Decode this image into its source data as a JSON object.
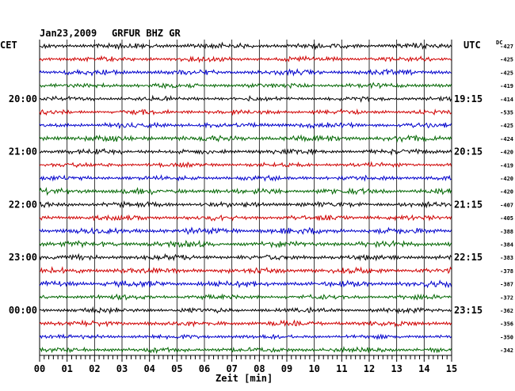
{
  "header": {
    "date": "Jan23,2009",
    "station": "GRFUR BHZ GR",
    "left_tz": "CET",
    "right_tz": "UTC",
    "dc_label": "DC"
  },
  "chart_data": {
    "type": "line",
    "title": "Jan23,2009   GRFUR BHZ GR",
    "xlabel": "Zeit [min]",
    "ylabel": "",
    "xlim": [
      0,
      15
    ],
    "x_ticks": [
      "00",
      "01",
      "02",
      "03",
      "04",
      "05",
      "06",
      "07",
      "08",
      "09",
      "10",
      "11",
      "12",
      "13",
      "14",
      "15"
    ],
    "grid": true,
    "trace_colors": [
      "#000000",
      "#d00000",
      "#0000cc",
      "#006600"
    ],
    "time_labels_left": [
      {
        "trace": 4,
        "text": "20:00"
      },
      {
        "trace": 8,
        "text": "21:00"
      },
      {
        "trace": 12,
        "text": "22:00"
      },
      {
        "trace": 16,
        "text": "23:00"
      },
      {
        "trace": 20,
        "text": "00:00"
      }
    ],
    "time_labels_right": [
      {
        "trace": 4,
        "text": "19:15"
      },
      {
        "trace": 8,
        "text": "20:15"
      },
      {
        "trace": 12,
        "text": "21:15"
      },
      {
        "trace": 16,
        "text": "22:15"
      },
      {
        "trace": 20,
        "text": "23:15"
      }
    ],
    "dc_offsets": [
      "-427",
      "-425",
      "-425",
      "-419",
      "-414",
      "-535",
      "-425",
      "-424",
      "-420",
      "-419",
      "-420",
      "-420",
      "-407",
      "-405",
      "-388",
      "-384",
      "-383",
      "-378",
      "-387",
      "-372",
      "-362",
      "-356",
      "-350",
      "-342"
    ]
  }
}
